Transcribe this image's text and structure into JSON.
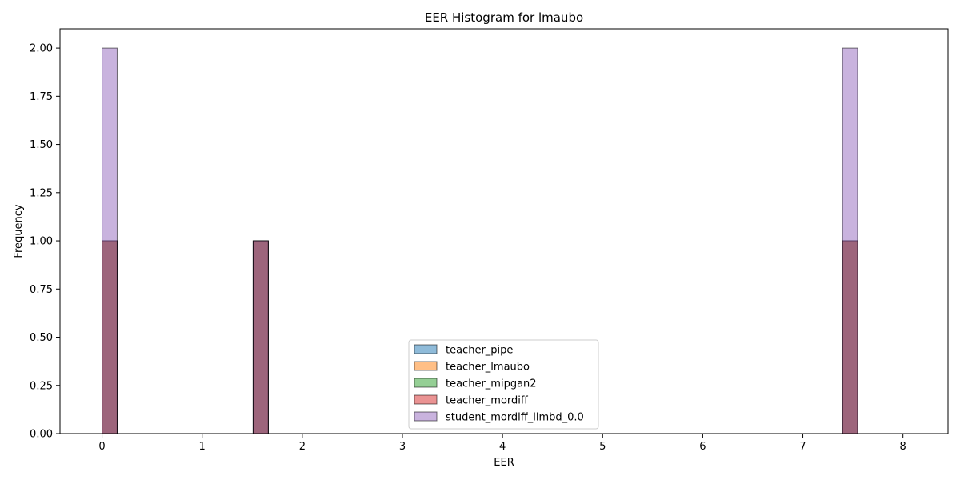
{
  "chart_data": {
    "type": "bar",
    "subtype": "histogram-overlay",
    "title": "EER Histogram for lmaubo",
    "xlabel": "EER",
    "ylabel": "Frequency",
    "xlim": [
      -0.42,
      8.45
    ],
    "ylim": [
      0,
      2.1
    ],
    "xticks": [
      0,
      1,
      2,
      3,
      4,
      5,
      6,
      7,
      8
    ],
    "yticks": [
      0.0,
      0.25,
      0.5,
      0.75,
      1.0,
      1.25,
      1.5,
      1.75,
      2.0
    ],
    "ytick_labels": [
      "0.00",
      "0.25",
      "0.50",
      "0.75",
      "1.00",
      "1.25",
      "1.50",
      "1.75",
      "2.00"
    ],
    "bin_start": 0.0,
    "bin_end": 8.0,
    "bin_count": 53,
    "alpha": 0.5,
    "legend_position": "lower-center",
    "series": [
      {
        "name": "teacher_pipe",
        "color": "#1f77b4",
        "bars": [
          {
            "x0": 0.0,
            "x1": 0.15,
            "count": 1
          },
          {
            "x0": 1.51,
            "x1": 1.66,
            "count": 1
          },
          {
            "x0": 7.4,
            "x1": 7.55,
            "count": 1
          }
        ]
      },
      {
        "name": "teacher_lmaubo",
        "color": "#ff7f0e",
        "bars": [
          {
            "x0": 0.0,
            "x1": 0.15,
            "count": 1
          },
          {
            "x0": 1.51,
            "x1": 1.66,
            "count": 1
          },
          {
            "x0": 7.4,
            "x1": 7.55,
            "count": 1
          }
        ]
      },
      {
        "name": "teacher_mipgan2",
        "color": "#2ca02c",
        "bars": [
          {
            "x0": 0.0,
            "x1": 0.15,
            "count": 1
          },
          {
            "x0": 1.51,
            "x1": 1.66,
            "count": 1
          },
          {
            "x0": 7.4,
            "x1": 7.55,
            "count": 1
          }
        ]
      },
      {
        "name": "teacher_mordiff",
        "color": "#d62728",
        "bars": [
          {
            "x0": 0.0,
            "x1": 0.15,
            "count": 1
          },
          {
            "x0": 1.51,
            "x1": 1.66,
            "count": 1
          },
          {
            "x0": 7.4,
            "x1": 7.55,
            "count": 1
          }
        ]
      },
      {
        "name": "student_mordiff_llmbd_0.0",
        "color": "#9467bd",
        "bars": [
          {
            "x0": 0.0,
            "x1": 0.15,
            "count": 2
          },
          {
            "x0": 1.51,
            "x1": 1.66,
            "count": 1
          },
          {
            "x0": 7.4,
            "x1": 7.55,
            "count": 2
          }
        ]
      }
    ]
  }
}
